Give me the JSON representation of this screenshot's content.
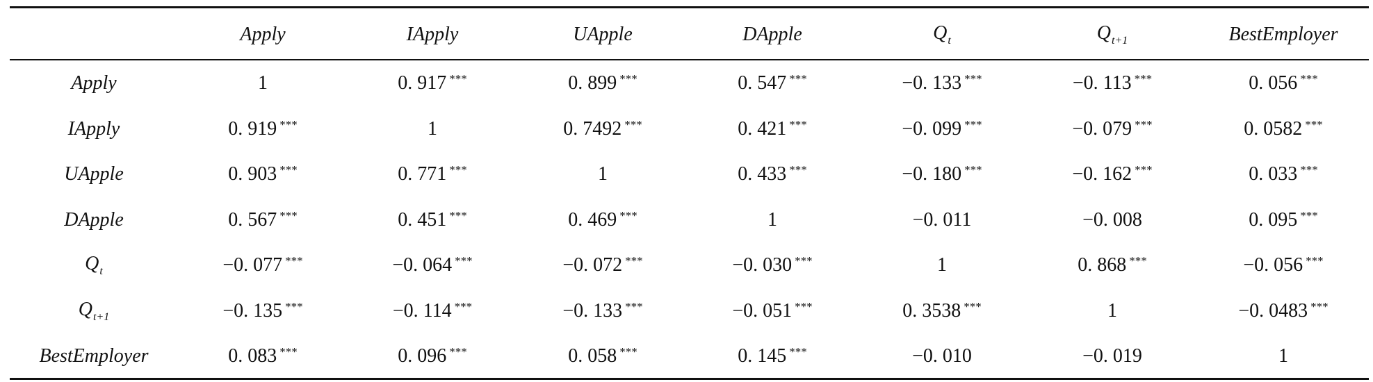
{
  "table": {
    "columns": [
      "Apply",
      "IApply",
      "UApple",
      "DApple",
      {
        "text": "Q",
        "sub": "t"
      },
      {
        "text": "Q",
        "sub": "t+1"
      },
      "BestEmployer"
    ],
    "rows": [
      {
        "label": "Apply",
        "cells": [
          "1",
          {
            "text": "0. 917",
            "sup": "***"
          },
          {
            "text": "0. 899",
            "sup": "***"
          },
          {
            "text": "0. 547",
            "sup": "***"
          },
          {
            "text": "−0. 133",
            "sup": "***"
          },
          {
            "text": "−0. 113",
            "sup": "***"
          },
          {
            "text": "0. 056",
            "sup": "***"
          }
        ]
      },
      {
        "label": "IApply",
        "cells": [
          {
            "text": "0. 919",
            "sup": "***"
          },
          "1",
          {
            "text": "0. 7492",
            "sup": "***"
          },
          {
            "text": "0. 421",
            "sup": "***"
          },
          {
            "text": "−0. 099",
            "sup": "***"
          },
          {
            "text": "−0. 079",
            "sup": "***"
          },
          {
            "text": "0. 0582",
            "sup": "***"
          }
        ]
      },
      {
        "label": "UApple",
        "cells": [
          {
            "text": "0. 903",
            "sup": "***"
          },
          {
            "text": "0. 771",
            "sup": "***"
          },
          "1",
          {
            "text": "0. 433",
            "sup": "***"
          },
          {
            "text": "−0. 180",
            "sup": "***"
          },
          {
            "text": "−0. 162",
            "sup": "***"
          },
          {
            "text": "0. 033",
            "sup": "***"
          }
        ]
      },
      {
        "label": "DApple",
        "cells": [
          {
            "text": "0. 567",
            "sup": "***"
          },
          {
            "text": "0. 451",
            "sup": "***"
          },
          {
            "text": "0. 469",
            "sup": "***"
          },
          "1",
          "−0. 011",
          "−0. 008",
          {
            "text": "0. 095",
            "sup": "***"
          }
        ]
      },
      {
        "label": {
          "text": "Q",
          "sub": "t"
        },
        "cells": [
          {
            "text": "−0. 077",
            "sup": "***"
          },
          {
            "text": "−0. 064",
            "sup": "***"
          },
          {
            "text": "−0. 072",
            "sup": "***"
          },
          {
            "text": "−0. 030",
            "sup": "***"
          },
          "1",
          {
            "text": "0. 868",
            "sup": "***"
          },
          {
            "text": "−0. 056",
            "sup": "***"
          }
        ]
      },
      {
        "label": {
          "text": "Q",
          "sub": "t+1"
        },
        "cells": [
          {
            "text": "−0. 135",
            "sup": "***"
          },
          {
            "text": "−0. 114",
            "sup": "***"
          },
          {
            "text": "−0. 133",
            "sup": "***"
          },
          {
            "text": "−0. 051",
            "sup": "***"
          },
          {
            "text": "0. 3538",
            "sup": "***"
          },
          "1",
          {
            "text": "−0. 0483",
            "sup": "***"
          }
        ]
      },
      {
        "label": "BestEmployer",
        "cells": [
          {
            "text": "0. 083",
            "sup": "***"
          },
          {
            "text": "0. 096",
            "sup": "***"
          },
          {
            "text": "0. 058",
            "sup": "***"
          },
          {
            "text": "0. 145",
            "sup": "***"
          },
          "−0. 010",
          "−0. 019",
          "1"
        ]
      }
    ]
  }
}
